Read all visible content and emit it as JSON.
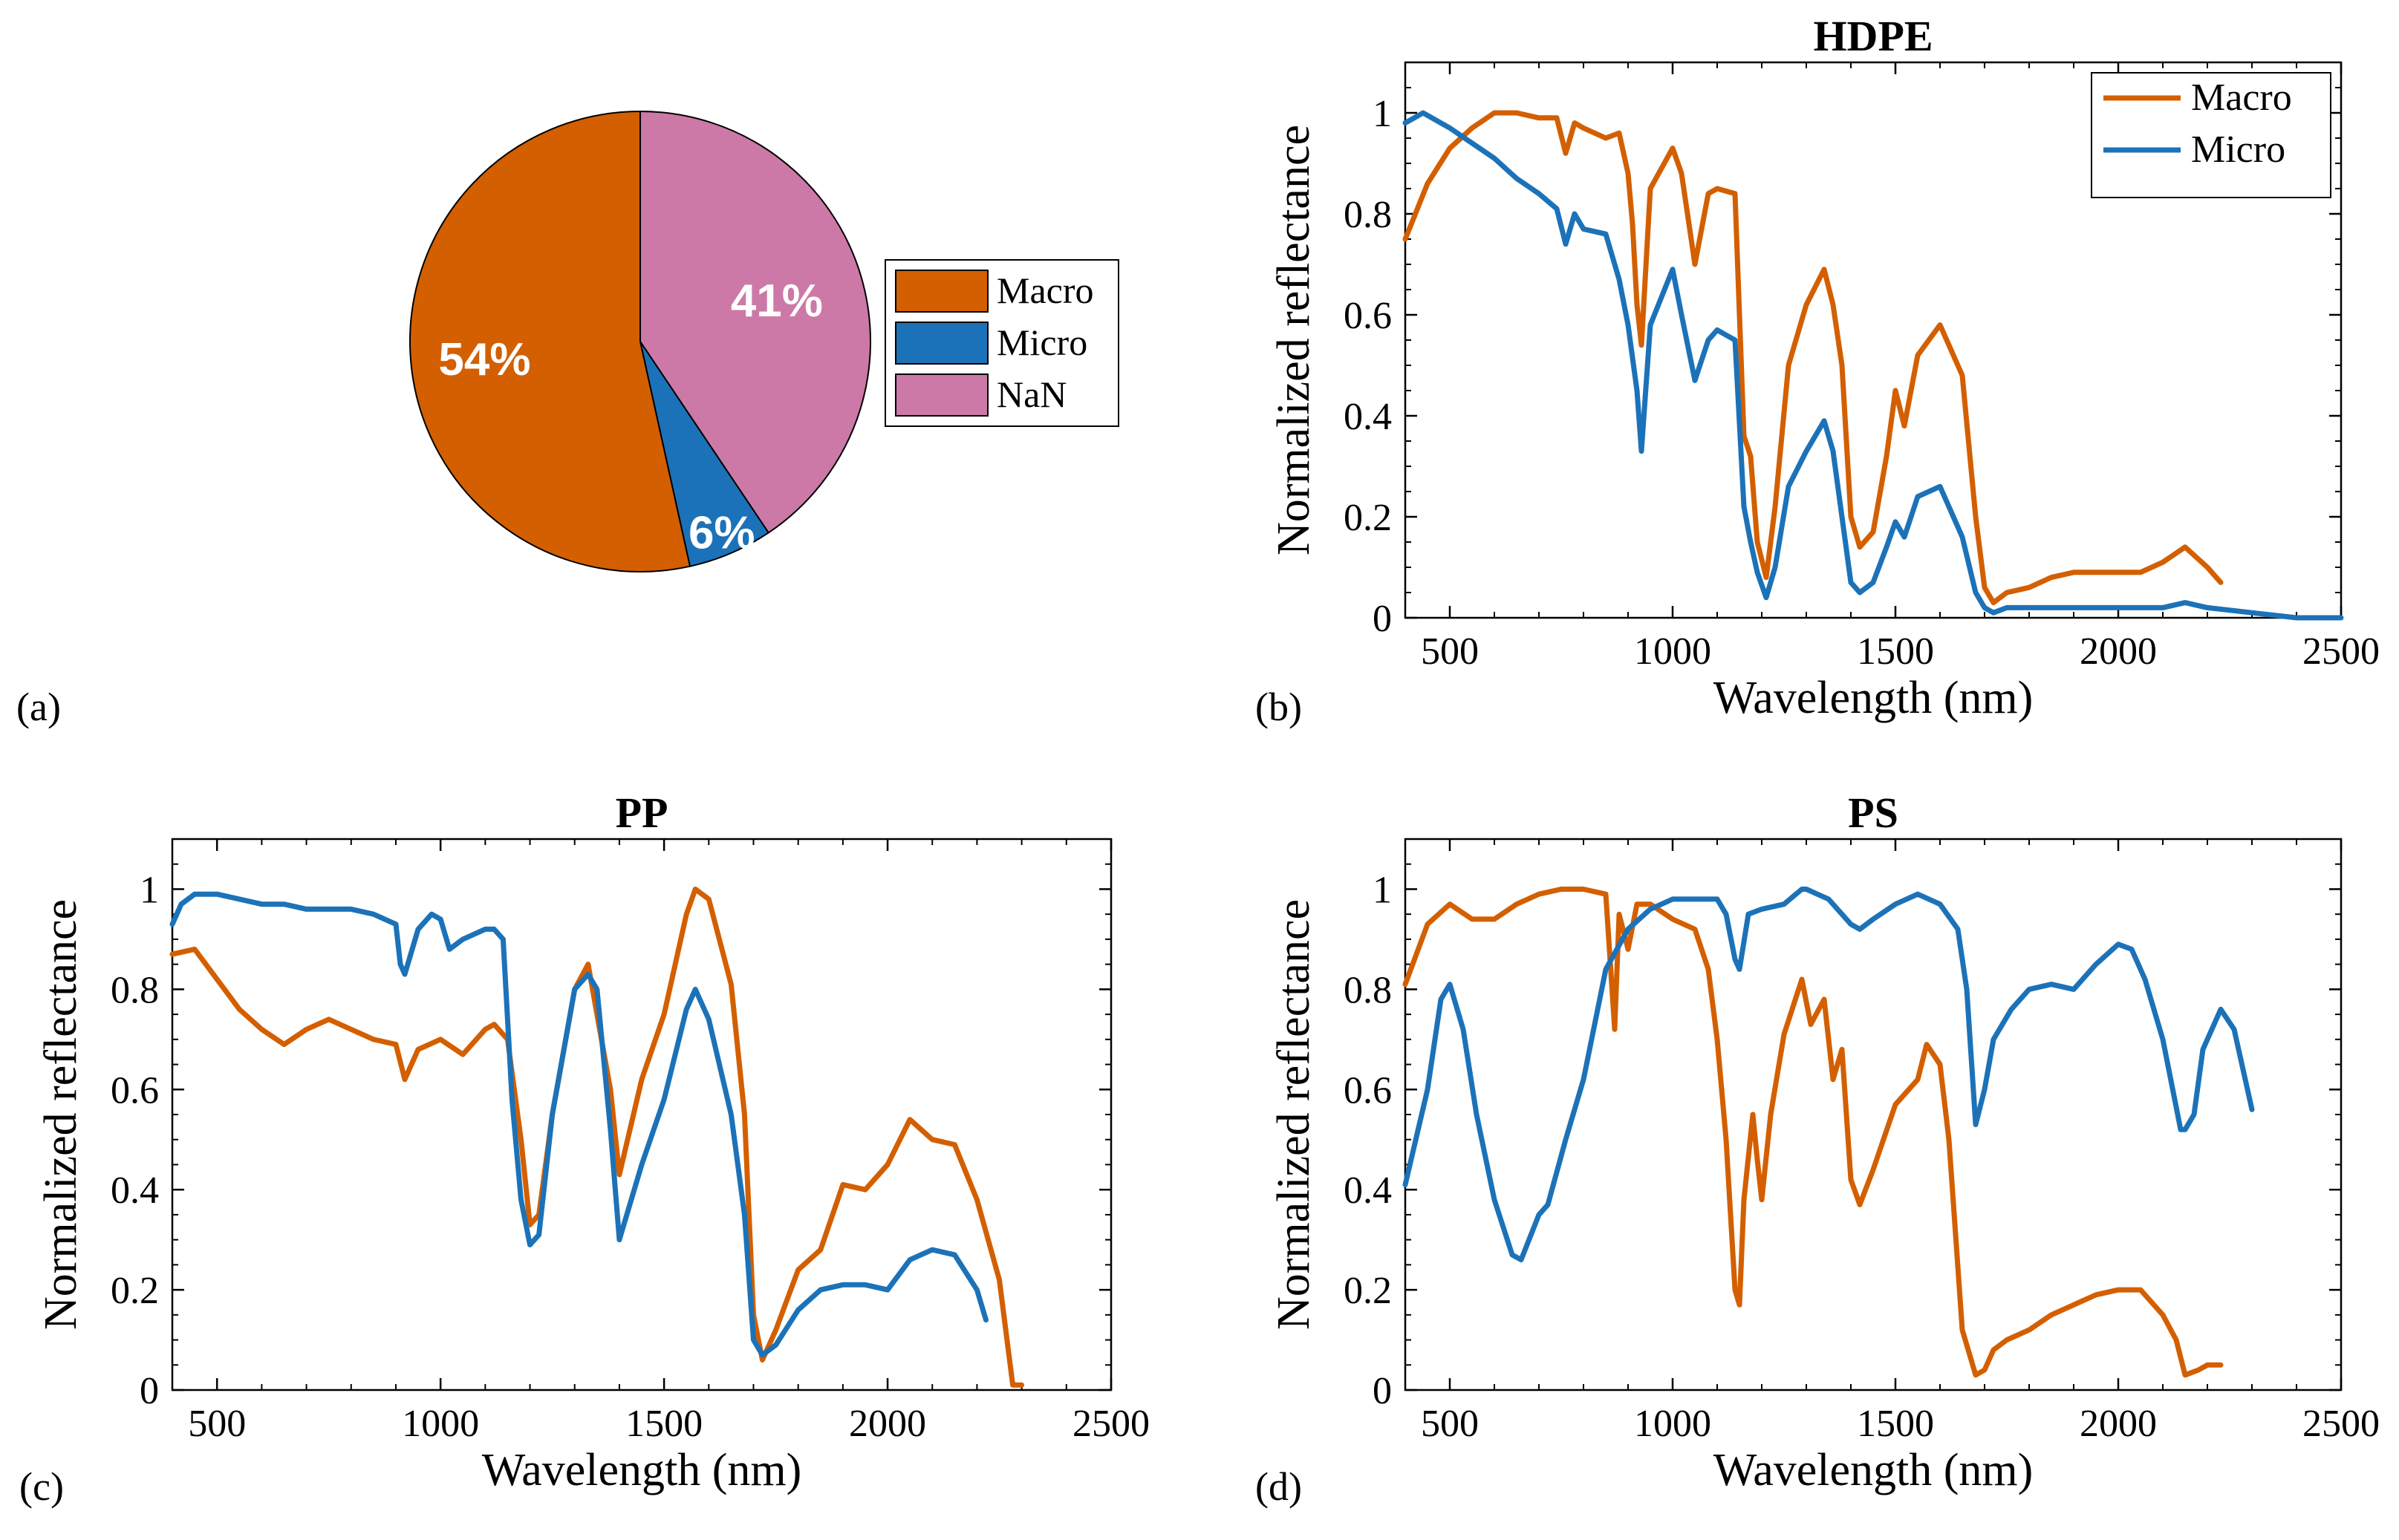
{
  "colors": {
    "macro": "#d35f00",
    "micro": "#1c72b8",
    "nan": "#cc79a7",
    "axis": "#000000"
  },
  "chart_data": [
    {
      "type": "pie",
      "panel_label": "(a)",
      "title": "",
      "slices": [
        {
          "name": "Macro",
          "value": 54,
          "label": "54%"
        },
        {
          "name": "Micro",
          "value": 6,
          "label": "6%"
        },
        {
          "name": "NaN",
          "value": 41,
          "label": "41%"
        }
      ],
      "legend": [
        "Macro",
        "Micro",
        "NaN"
      ],
      "legend_placement": "right"
    },
    {
      "type": "line",
      "panel_label": "(b)",
      "title": "HDPE",
      "xlabel": "Wavelength (nm)",
      "ylabel": "Normalized reflectance",
      "xlim": [
        400,
        2500
      ],
      "ylim": [
        0,
        1.1
      ],
      "xticks": [
        500,
        1000,
        1500,
        2000,
        2500
      ],
      "yticks": [
        0,
        0.2,
        0.4,
        0.6,
        0.8,
        1
      ],
      "legend": [
        "Macro",
        "Micro"
      ],
      "legend_placement": "top-right",
      "series": [
        {
          "name": "Macro",
          "color_key": "macro",
          "x": [
            400,
            450,
            500,
            550,
            600,
            650,
            700,
            740,
            760,
            780,
            800,
            850,
            880,
            900,
            910,
            920,
            930,
            950,
            1000,
            1020,
            1050,
            1080,
            1100,
            1140,
            1160,
            1175,
            1190,
            1210,
            1230,
            1260,
            1300,
            1340,
            1360,
            1380,
            1400,
            1420,
            1450,
            1480,
            1500,
            1520,
            1550,
            1600,
            1650,
            1680,
            1700,
            1720,
            1750,
            1800,
            1850,
            1900,
            2000,
            2050,
            2100,
            2150,
            2200,
            2230
          ],
          "y": [
            0.75,
            0.86,
            0.93,
            0.97,
            1.0,
            1.0,
            0.99,
            0.99,
            0.92,
            0.98,
            0.97,
            0.95,
            0.96,
            0.88,
            0.78,
            0.62,
            0.54,
            0.85,
            0.93,
            0.88,
            0.7,
            0.84,
            0.85,
            0.84,
            0.36,
            0.32,
            0.15,
            0.08,
            0.22,
            0.5,
            0.62,
            0.69,
            0.62,
            0.5,
            0.2,
            0.14,
            0.17,
            0.32,
            0.45,
            0.38,
            0.52,
            0.58,
            0.48,
            0.2,
            0.06,
            0.03,
            0.05,
            0.06,
            0.08,
            0.09,
            0.09,
            0.09,
            0.11,
            0.14,
            0.1,
            0.07
          ]
        },
        {
          "name": "Micro",
          "color_key": "micro",
          "x": [
            400,
            420,
            440,
            460,
            500,
            550,
            600,
            650,
            700,
            740,
            760,
            780,
            800,
            850,
            880,
            900,
            920,
            930,
            950,
            1000,
            1020,
            1050,
            1080,
            1100,
            1140,
            1160,
            1175,
            1190,
            1210,
            1230,
            1260,
            1300,
            1340,
            1360,
            1380,
            1400,
            1420,
            1450,
            1480,
            1500,
            1520,
            1550,
            1600,
            1650,
            1680,
            1700,
            1720,
            1750,
            1800,
            1850,
            1900,
            2000,
            2050,
            2100,
            2150,
            2200,
            2300,
            2400,
            2500
          ],
          "y": [
            0.98,
            0.99,
            1.0,
            0.99,
            0.97,
            0.94,
            0.91,
            0.87,
            0.84,
            0.81,
            0.74,
            0.8,
            0.77,
            0.76,
            0.67,
            0.58,
            0.45,
            0.33,
            0.58,
            0.69,
            0.6,
            0.47,
            0.55,
            0.57,
            0.55,
            0.22,
            0.15,
            0.09,
            0.04,
            0.1,
            0.26,
            0.33,
            0.39,
            0.33,
            0.2,
            0.07,
            0.05,
            0.07,
            0.14,
            0.19,
            0.16,
            0.24,
            0.26,
            0.16,
            0.05,
            0.02,
            0.01,
            0.02,
            0.02,
            0.02,
            0.02,
            0.02,
            0.02,
            0.02,
            0.03,
            0.02,
            0.01,
            0.0,
            0.0
          ]
        }
      ]
    },
    {
      "type": "line",
      "panel_label": "(c)",
      "title": "PP",
      "xlabel": "Wavelength (nm)",
      "ylabel": "Normalized reflectance",
      "xlim": [
        400,
        2500
      ],
      "ylim": [
        0,
        1.1
      ],
      "xticks": [
        500,
        1000,
        1500,
        2000,
        2500
      ],
      "yticks": [
        0,
        0.2,
        0.4,
        0.6,
        0.8,
        1
      ],
      "series": [
        {
          "name": "Macro",
          "color_key": "macro",
          "x": [
            400,
            450,
            500,
            550,
            600,
            650,
            700,
            750,
            800,
            850,
            900,
            920,
            950,
            1000,
            1050,
            1100,
            1120,
            1150,
            1180,
            1200,
            1220,
            1250,
            1300,
            1330,
            1360,
            1380,
            1400,
            1450,
            1500,
            1550,
            1570,
            1600,
            1650,
            1680,
            1700,
            1720,
            1750,
            1800,
            1850,
            1900,
            1950,
            2000,
            2050,
            2100,
            2150,
            2200,
            2250,
            2280,
            2300
          ],
          "y": [
            0.87,
            0.88,
            0.82,
            0.76,
            0.72,
            0.69,
            0.72,
            0.74,
            0.72,
            0.7,
            0.69,
            0.62,
            0.68,
            0.7,
            0.67,
            0.72,
            0.73,
            0.7,
            0.5,
            0.33,
            0.35,
            0.55,
            0.8,
            0.85,
            0.7,
            0.6,
            0.43,
            0.62,
            0.75,
            0.95,
            1.0,
            0.98,
            0.81,
            0.55,
            0.15,
            0.06,
            0.12,
            0.24,
            0.28,
            0.41,
            0.4,
            0.45,
            0.54,
            0.5,
            0.49,
            0.38,
            0.22,
            0.01,
            0.01
          ]
        },
        {
          "name": "Micro",
          "color_key": "micro",
          "x": [
            400,
            420,
            450,
            500,
            550,
            600,
            650,
            700,
            750,
            800,
            850,
            900,
            910,
            920,
            950,
            980,
            1000,
            1020,
            1050,
            1100,
            1120,
            1140,
            1160,
            1180,
            1200,
            1220,
            1250,
            1300,
            1330,
            1350,
            1380,
            1400,
            1450,
            1500,
            1550,
            1570,
            1600,
            1650,
            1680,
            1700,
            1720,
            1750,
            1800,
            1850,
            1900,
            1950,
            2000,
            2050,
            2100,
            2150,
            2200,
            2220
          ],
          "y": [
            0.93,
            0.97,
            0.99,
            0.99,
            0.98,
            0.97,
            0.97,
            0.96,
            0.96,
            0.96,
            0.95,
            0.93,
            0.85,
            0.83,
            0.92,
            0.95,
            0.94,
            0.88,
            0.9,
            0.92,
            0.92,
            0.9,
            0.58,
            0.38,
            0.29,
            0.31,
            0.55,
            0.8,
            0.83,
            0.8,
            0.52,
            0.3,
            0.45,
            0.58,
            0.76,
            0.8,
            0.74,
            0.55,
            0.35,
            0.1,
            0.07,
            0.09,
            0.16,
            0.2,
            0.21,
            0.21,
            0.2,
            0.26,
            0.28,
            0.27,
            0.2,
            0.14
          ]
        }
      ]
    },
    {
      "type": "line",
      "panel_label": "(d)",
      "title": "PS",
      "xlabel": "Wavelength (nm)",
      "ylabel": "Normalized reflectance",
      "xlim": [
        400,
        2500
      ],
      "ylim": [
        0,
        1.1
      ],
      "xticks": [
        500,
        1000,
        1500,
        2000,
        2500
      ],
      "yticks": [
        0,
        0.2,
        0.4,
        0.6,
        0.8,
        1
      ],
      "series": [
        {
          "name": "Macro",
          "color_key": "macro",
          "x": [
            400,
            450,
            500,
            550,
            600,
            650,
            700,
            750,
            800,
            850,
            870,
            880,
            900,
            920,
            950,
            1000,
            1050,
            1080,
            1100,
            1120,
            1140,
            1150,
            1160,
            1180,
            1190,
            1200,
            1220,
            1250,
            1290,
            1310,
            1340,
            1360,
            1380,
            1400,
            1420,
            1450,
            1500,
            1550,
            1570,
            1600,
            1620,
            1650,
            1680,
            1700,
            1720,
            1750,
            1800,
            1850,
            1900,
            1950,
            2000,
            2050,
            2100,
            2130,
            2150,
            2180,
            2200,
            2230
          ],
          "y": [
            0.81,
            0.93,
            0.97,
            0.94,
            0.94,
            0.97,
            0.99,
            1.0,
            1.0,
            0.99,
            0.72,
            0.95,
            0.88,
            0.97,
            0.97,
            0.94,
            0.92,
            0.84,
            0.7,
            0.5,
            0.2,
            0.17,
            0.38,
            0.55,
            0.46,
            0.38,
            0.55,
            0.71,
            0.82,
            0.73,
            0.78,
            0.62,
            0.68,
            0.42,
            0.37,
            0.44,
            0.57,
            0.62,
            0.69,
            0.65,
            0.5,
            0.12,
            0.03,
            0.04,
            0.08,
            0.1,
            0.12,
            0.15,
            0.17,
            0.19,
            0.2,
            0.2,
            0.15,
            0.1,
            0.03,
            0.04,
            0.05,
            0.05
          ]
        },
        {
          "name": "Micro",
          "color_key": "micro",
          "x": [
            400,
            450,
            480,
            500,
            530,
            560,
            600,
            640,
            660,
            700,
            720,
            760,
            800,
            850,
            900,
            950,
            1000,
            1050,
            1080,
            1100,
            1120,
            1140,
            1150,
            1170,
            1200,
            1250,
            1290,
            1300,
            1350,
            1400,
            1420,
            1450,
            1500,
            1550,
            1600,
            1640,
            1660,
            1680,
            1700,
            1720,
            1760,
            1800,
            1850,
            1900,
            1950,
            2000,
            2030,
            2060,
            2100,
            2140,
            2150,
            2170,
            2190,
            2210,
            2230,
            2260,
            2300
          ],
          "y": [
            0.41,
            0.6,
            0.78,
            0.81,
            0.72,
            0.55,
            0.38,
            0.27,
            0.26,
            0.35,
            0.37,
            0.5,
            0.62,
            0.84,
            0.92,
            0.96,
            0.98,
            0.98,
            0.98,
            0.98,
            0.95,
            0.86,
            0.84,
            0.95,
            0.96,
            0.97,
            1.0,
            1.0,
            0.98,
            0.93,
            0.92,
            0.94,
            0.97,
            0.99,
            0.97,
            0.92,
            0.8,
            0.53,
            0.6,
            0.7,
            0.76,
            0.8,
            0.81,
            0.8,
            0.85,
            0.89,
            0.88,
            0.82,
            0.7,
            0.52,
            0.52,
            0.55,
            0.68,
            0.72,
            0.76,
            0.72,
            0.56
          ]
        }
      ]
    }
  ]
}
